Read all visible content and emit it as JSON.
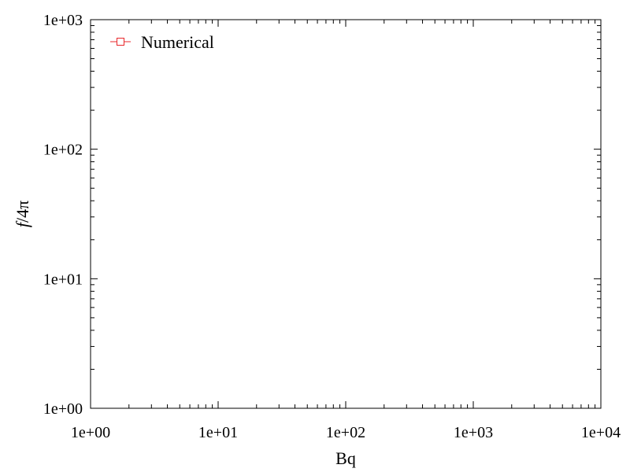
{
  "chart_data": {
    "type": "line",
    "title": "",
    "xlabel": "Bq",
    "ylabel_italic": "f",
    "ylabel_rest": "/4π",
    "x_scale": "log",
    "y_scale": "log",
    "xlim": [
      1,
      10000
    ],
    "ylim": [
      1,
      1000
    ],
    "grid": false,
    "legend_position": "top-left",
    "x_ticks": [
      {
        "value": 1,
        "label": "1e+00"
      },
      {
        "value": 10,
        "label": "1e+01"
      },
      {
        "value": 100,
        "label": "1e+02"
      },
      {
        "value": 1000,
        "label": "1e+03"
      },
      {
        "value": 10000,
        "label": "1e+04"
      }
    ],
    "y_ticks": [
      {
        "value": 1,
        "label": "1e+00"
      },
      {
        "value": 10,
        "label": "1e+01"
      },
      {
        "value": 100,
        "label": "1e+02"
      },
      {
        "value": 1000,
        "label": "1e+03"
      }
    ],
    "series": [
      {
        "name": "Numerical",
        "color": "#e8272b",
        "marker": "open-square",
        "points": []
      }
    ]
  }
}
